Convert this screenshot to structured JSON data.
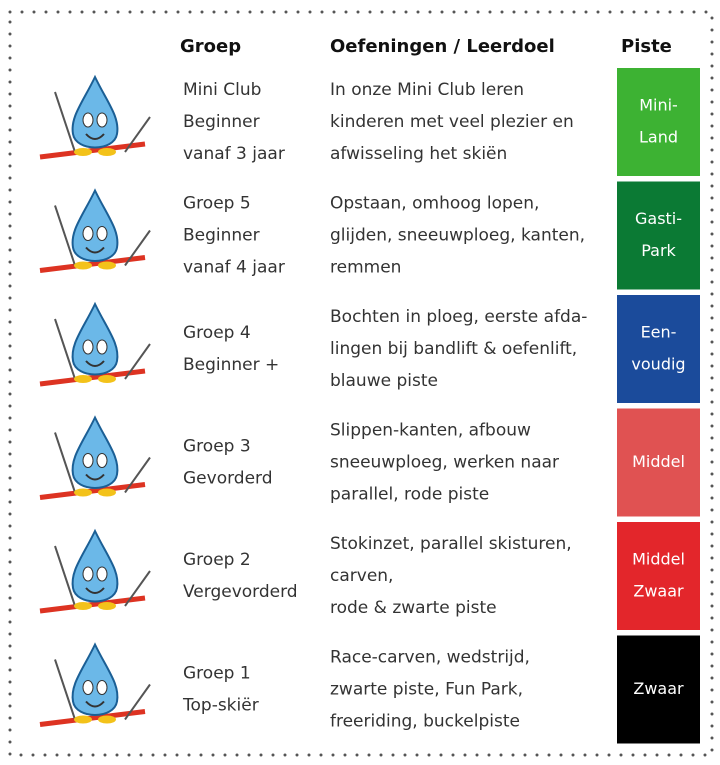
{
  "header": {
    "group": "Groep",
    "exercises": "Oefeningen / Leerdoel",
    "piste": "Piste"
  },
  "rows": [
    {
      "group": [
        "Mini Club",
        "Beginner",
        "vanaf 3 jaar"
      ],
      "exercises": [
        "In onze Mini Club leren",
        "kinderen met veel plezier en",
        "afwisseling het skiën"
      ],
      "piste": [
        "Mini-",
        "Land"
      ],
      "color": "#3db233"
    },
    {
      "group": [
        "Groep 5",
        "Beginner",
        "vanaf 4 jaar"
      ],
      "exercises": [
        "Opstaan, omhoog lopen,",
        "glijden, sneeuwploeg, kanten,",
        "remmen"
      ],
      "piste": [
        "Gasti-",
        "Park"
      ],
      "color": "#0b7a34"
    },
    {
      "group": [
        "Groep 4",
        "Beginner +"
      ],
      "exercises": [
        "Bochten in ploeg, eerste afda-",
        "lingen bij bandlift & oefenlift,",
        "blauwe piste"
      ],
      "piste": [
        "Een-",
        "voudig"
      ],
      "color": "#1b4b9b"
    },
    {
      "group": [
        "Groep 3",
        "Gevorderd"
      ],
      "exercises": [
        "Slippen-kanten, afbouw",
        "sneeuwploeg, werken naar",
        "parallel, rode piste"
      ],
      "piste": [
        "Middel"
      ],
      "color": "#e05252"
    },
    {
      "group": [
        "Groep 2",
        "Vergevorderd"
      ],
      "exercises": [
        "Stokinzet, parallel skisturen,",
        "carven,",
        "rode & zwarte piste"
      ],
      "piste": [
        "Middel",
        "Zwaar"
      ],
      "color": "#e3262b"
    },
    {
      "group": [
        "Groep 1",
        "Top-skiër"
      ],
      "exercises": [
        "Race-carven, wedstrijd,",
        "zwarte piste, Fun Park,",
        "freeriding, buckelpiste"
      ],
      "piste": [
        "Zwaar"
      ],
      "color": "#000000"
    }
  ]
}
